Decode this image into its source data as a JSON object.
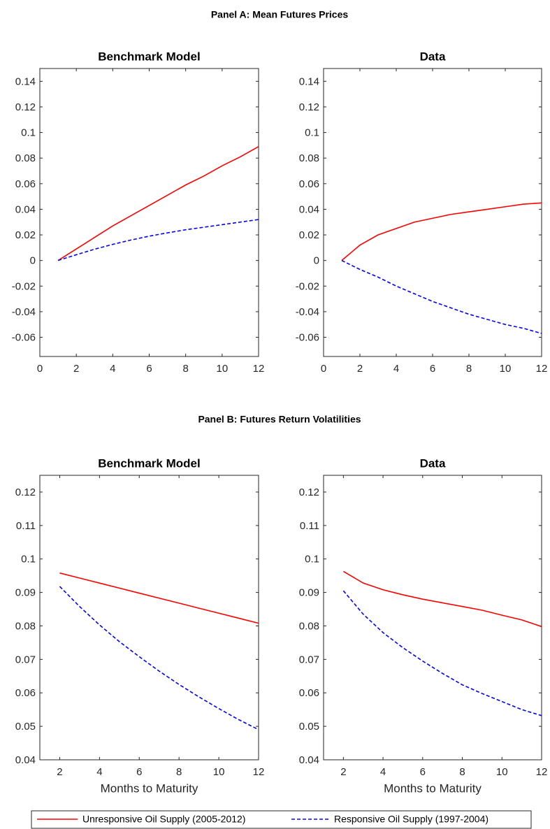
{
  "panels": [
    "Panel A: Mean Futures Prices",
    "Panel B: Futures Return Volatilities"
  ],
  "chart_data": [
    {
      "type": "line",
      "title": "Benchmark Model",
      "x": [
        1,
        2,
        3,
        4,
        5,
        6,
        7,
        8,
        9,
        10,
        11,
        12
      ],
      "xlim": [
        0,
        12
      ],
      "xticks": [
        0,
        2,
        4,
        6,
        8,
        10,
        12
      ],
      "ylim": [
        -0.075,
        0.15
      ],
      "yticks": [
        -0.06,
        -0.04,
        -0.02,
        0,
        0.02,
        0.04,
        0.06,
        0.08,
        0.1,
        0.12,
        0.14
      ],
      "series": [
        {
          "name": "Unresponsive Oil Supply (2005-2012)",
          "color": "#ff0000",
          "style": "solid",
          "values": [
            0,
            0.009,
            0.018,
            0.027,
            0.035,
            0.043,
            0.051,
            0.059,
            0.066,
            0.074,
            0.081,
            0.089
          ]
        },
        {
          "name": "Responsive Oil Supply (1997-2004)",
          "color": "#0000ff",
          "style": "dashed",
          "values": [
            0,
            0.0045,
            0.0088,
            0.0126,
            0.016,
            0.019,
            0.0216,
            0.024,
            0.026,
            0.028,
            0.03,
            0.032
          ]
        }
      ]
    },
    {
      "type": "line",
      "title": "Data",
      "x": [
        1,
        2,
        3,
        4,
        5,
        6,
        7,
        8,
        9,
        10,
        11,
        12
      ],
      "xlim": [
        0,
        12
      ],
      "xticks": [
        0,
        2,
        4,
        6,
        8,
        10,
        12
      ],
      "ylim": [
        -0.075,
        0.15
      ],
      "yticks": [
        -0.06,
        -0.04,
        -0.02,
        0,
        0.02,
        0.04,
        0.06,
        0.08,
        0.1,
        0.12,
        0.14
      ],
      "series": [
        {
          "color": "#ff0000",
          "style": "solid",
          "values": [
            0,
            0.012,
            0.02,
            0.025,
            0.03,
            0.033,
            0.036,
            0.038,
            0.04,
            0.042,
            0.044,
            0.045
          ]
        },
        {
          "color": "#0000ff",
          "style": "dashed",
          "values": [
            0,
            -0.007,
            -0.013,
            -0.02,
            -0.026,
            -0.032,
            -0.037,
            -0.042,
            -0.046,
            -0.05,
            -0.053,
            -0.057
          ]
        }
      ]
    },
    {
      "type": "line",
      "title": "Benchmark Model",
      "xlabel": "Months to Maturity",
      "x": [
        2,
        3,
        4,
        5,
        6,
        7,
        8,
        9,
        10,
        11,
        12
      ],
      "xlim": [
        1,
        12
      ],
      "xticks": [
        2,
        4,
        6,
        8,
        10,
        12
      ],
      "ylim": [
        0.04,
        0.125
      ],
      "yticks": [
        0.04,
        0.05,
        0.06,
        0.07,
        0.08,
        0.09,
        0.1,
        0.11,
        0.12
      ],
      "series": [
        {
          "color": "#ff0000",
          "style": "solid",
          "values": [
            0.0958,
            0.0943,
            0.0928,
            0.0913,
            0.0898,
            0.0883,
            0.0868,
            0.0853,
            0.0838,
            0.0823,
            0.0808
          ]
        },
        {
          "color": "#0000ff",
          "style": "dashed",
          "values": [
            0.0918,
            0.0858,
            0.0803,
            0.0753,
            0.0708,
            0.0665,
            0.0625,
            0.0588,
            0.0553,
            0.052,
            0.049
          ]
        }
      ]
    },
    {
      "type": "line",
      "title": "Data",
      "xlabel": "Months to Maturity",
      "x": [
        2,
        3,
        4,
        5,
        6,
        7,
        8,
        9,
        10,
        11,
        12
      ],
      "xlim": [
        1,
        12
      ],
      "xticks": [
        2,
        4,
        6,
        8,
        10,
        12
      ],
      "ylim": [
        0.04,
        0.125
      ],
      "yticks": [
        0.04,
        0.05,
        0.06,
        0.07,
        0.08,
        0.09,
        0.1,
        0.11,
        0.12
      ],
      "series": [
        {
          "color": "#ff0000",
          "style": "solid",
          "values": [
            0.0963,
            0.0928,
            0.0908,
            0.0893,
            0.088,
            0.0869,
            0.0858,
            0.0847,
            0.0832,
            0.0818,
            0.0798
          ]
        },
        {
          "color": "#0000ff",
          "style": "dashed",
          "values": [
            0.0905,
            0.0835,
            0.078,
            0.0735,
            0.0695,
            0.0658,
            0.0624,
            0.0598,
            0.0574,
            0.055,
            0.0532
          ]
        }
      ]
    }
  ]
}
